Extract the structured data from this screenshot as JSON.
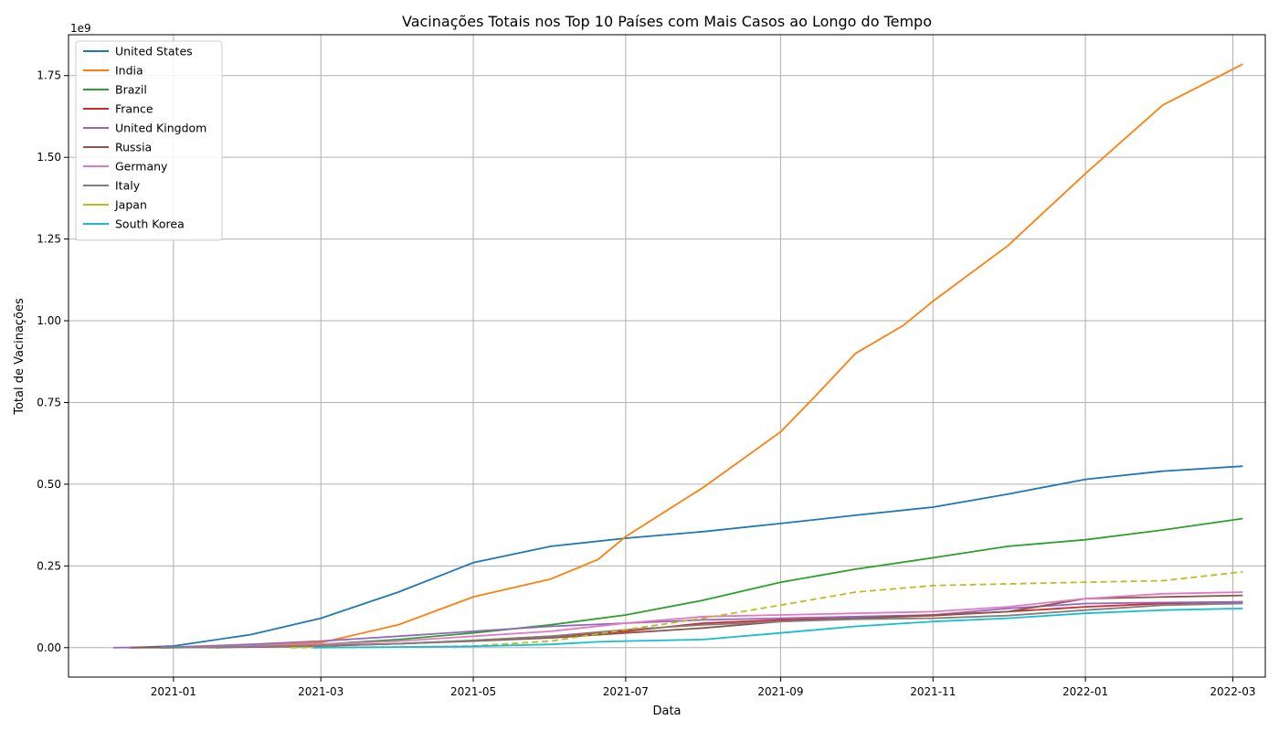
{
  "chart_data": {
    "type": "line",
    "title": "Vacinações Totais nos Top 10 Países com Mais Casos ao Longo do Tempo",
    "xlabel": "Data",
    "ylabel": "Total de Vacinações",
    "y_scale_label": "1e9",
    "y_ticks": [
      "0.00",
      "0.25",
      "0.50",
      "0.75",
      "1.00",
      "1.25",
      "1.50",
      "1.75"
    ],
    "x_ticks": [
      "2021-01",
      "2021-03",
      "2021-05",
      "2021-07",
      "2021-09",
      "2021-11",
      "2022-01",
      "2022-03"
    ],
    "xlim": [
      "2020-11-20",
      "2022-03-14"
    ],
    "ylim": [
      -0.09,
      1.875
    ],
    "grid": true,
    "legend_position": "upper-left",
    "series": [
      {
        "name": "United States",
        "color": "#1f77b4",
        "dashed": false,
        "points": [
          [
            "2020-12-14",
            0
          ],
          [
            "2021-01-01",
            0.005
          ],
          [
            "2021-02-01",
            0.04
          ],
          [
            "2021-03-01",
            0.09
          ],
          [
            "2021-04-01",
            0.17
          ],
          [
            "2021-05-01",
            0.26
          ],
          [
            "2021-06-01",
            0.31
          ],
          [
            "2021-07-01",
            0.335
          ],
          [
            "2021-08-01",
            0.355
          ],
          [
            "2021-09-01",
            0.38
          ],
          [
            "2021-10-01",
            0.405
          ],
          [
            "2021-11-01",
            0.43
          ],
          [
            "2021-12-01",
            0.47
          ],
          [
            "2022-01-01",
            0.515
          ],
          [
            "2022-02-01",
            0.54
          ],
          [
            "2022-03-05",
            0.555
          ]
        ]
      },
      {
        "name": "India",
        "color": "#ff7f0e",
        "dashed": false,
        "points": [
          [
            "2021-01-16",
            0
          ],
          [
            "2021-02-01",
            0.005
          ],
          [
            "2021-03-01",
            0.015
          ],
          [
            "2021-04-01",
            0.07
          ],
          [
            "2021-05-01",
            0.155
          ],
          [
            "2021-06-01",
            0.21
          ],
          [
            "2021-06-20",
            0.27
          ],
          [
            "2021-07-01",
            0.34
          ],
          [
            "2021-08-01",
            0.49
          ],
          [
            "2021-09-01",
            0.66
          ],
          [
            "2021-09-15",
            0.77
          ],
          [
            "2021-10-01",
            0.9
          ],
          [
            "2021-10-20",
            0.985
          ],
          [
            "2021-11-01",
            1.06
          ],
          [
            "2021-12-01",
            1.23
          ],
          [
            "2022-01-01",
            1.45
          ],
          [
            "2022-02-01",
            1.66
          ],
          [
            "2022-03-05",
            1.785
          ]
        ]
      },
      {
        "name": "Brazil",
        "color": "#2ca02c",
        "dashed": false,
        "points": [
          [
            "2021-01-18",
            0
          ],
          [
            "2021-03-01",
            0.01
          ],
          [
            "2021-04-01",
            0.025
          ],
          [
            "2021-05-01",
            0.045
          ],
          [
            "2021-06-01",
            0.07
          ],
          [
            "2021-07-01",
            0.1
          ],
          [
            "2021-08-01",
            0.145
          ],
          [
            "2021-09-01",
            0.2
          ],
          [
            "2021-10-01",
            0.24
          ],
          [
            "2021-11-01",
            0.275
          ],
          [
            "2021-12-01",
            0.31
          ],
          [
            "2022-01-01",
            0.33
          ],
          [
            "2022-02-01",
            0.36
          ],
          [
            "2022-03-05",
            0.395
          ]
        ]
      },
      {
        "name": "France",
        "color": "#d62728",
        "dashed": false,
        "points": [
          [
            "2020-12-27",
            0
          ],
          [
            "2021-02-01",
            0.002
          ],
          [
            "2021-03-01",
            0.005
          ],
          [
            "2021-04-01",
            0.012
          ],
          [
            "2021-05-01",
            0.022
          ],
          [
            "2021-06-01",
            0.035
          ],
          [
            "2021-07-01",
            0.05
          ],
          [
            "2021-08-01",
            0.075
          ],
          [
            "2021-09-01",
            0.085
          ],
          [
            "2021-10-01",
            0.09
          ],
          [
            "2021-11-01",
            0.098
          ],
          [
            "2021-12-01",
            0.11
          ],
          [
            "2022-01-01",
            0.125
          ],
          [
            "2022-02-01",
            0.135
          ],
          [
            "2022-03-05",
            0.14
          ]
        ]
      },
      {
        "name": "United Kingdom",
        "color": "#9467bd",
        "dashed": false,
        "points": [
          [
            "2020-12-08",
            0
          ],
          [
            "2021-01-01",
            0.002
          ],
          [
            "2021-02-01",
            0.01
          ],
          [
            "2021-03-01",
            0.02
          ],
          [
            "2021-04-01",
            0.035
          ],
          [
            "2021-05-01",
            0.05
          ],
          [
            "2021-06-01",
            0.065
          ],
          [
            "2021-07-01",
            0.075
          ],
          [
            "2021-08-01",
            0.085
          ],
          [
            "2021-09-01",
            0.09
          ],
          [
            "2021-10-01",
            0.095
          ],
          [
            "2021-11-01",
            0.1
          ],
          [
            "2021-12-01",
            0.12
          ],
          [
            "2022-01-01",
            0.135
          ],
          [
            "2022-02-01",
            0.138
          ],
          [
            "2022-03-05",
            0.14
          ]
        ]
      },
      {
        "name": "Russia",
        "color": "#8c564b",
        "dashed": false,
        "points": [
          [
            "2020-12-15",
            0
          ],
          [
            "2021-02-01",
            0.002
          ],
          [
            "2021-03-01",
            0.006
          ],
          [
            "2021-04-01",
            0.012
          ],
          [
            "2021-05-01",
            0.02
          ],
          [
            "2021-06-01",
            0.03
          ],
          [
            "2021-07-01",
            0.045
          ],
          [
            "2021-08-01",
            0.06
          ],
          [
            "2021-09-01",
            0.08
          ],
          [
            "2021-10-01",
            0.09
          ],
          [
            "2021-11-01",
            0.1
          ],
          [
            "2021-12-01",
            0.11
          ],
          [
            "2022-01-01",
            0.15
          ],
          [
            "2022-02-01",
            0.155
          ],
          [
            "2022-03-05",
            0.16
          ]
        ]
      },
      {
        "name": "Germany",
        "color": "#e377c2",
        "dashed": false,
        "points": [
          [
            "2020-12-27",
            0
          ],
          [
            "2021-02-01",
            0.005
          ],
          [
            "2021-03-01",
            0.01
          ],
          [
            "2021-04-01",
            0.02
          ],
          [
            "2021-05-01",
            0.035
          ],
          [
            "2021-06-01",
            0.05
          ],
          [
            "2021-07-01",
            0.075
          ],
          [
            "2021-08-01",
            0.095
          ],
          [
            "2021-09-01",
            0.1
          ],
          [
            "2021-10-01",
            0.105
          ],
          [
            "2021-11-01",
            0.11
          ],
          [
            "2021-12-01",
            0.125
          ],
          [
            "2022-01-01",
            0.15
          ],
          [
            "2022-02-01",
            0.165
          ],
          [
            "2022-03-05",
            0.17
          ]
        ]
      },
      {
        "name": "Italy",
        "color": "#7f7f7f",
        "dashed": false,
        "points": [
          [
            "2020-12-27",
            0
          ],
          [
            "2021-02-01",
            0.003
          ],
          [
            "2021-03-01",
            0.007
          ],
          [
            "2021-04-01",
            0.012
          ],
          [
            "2021-05-01",
            0.022
          ],
          [
            "2021-06-01",
            0.035
          ],
          [
            "2021-07-01",
            0.055
          ],
          [
            "2021-08-01",
            0.07
          ],
          [
            "2021-09-01",
            0.08
          ],
          [
            "2021-10-01",
            0.087
          ],
          [
            "2021-11-01",
            0.09
          ],
          [
            "2021-12-01",
            0.098
          ],
          [
            "2022-01-01",
            0.115
          ],
          [
            "2022-02-01",
            0.13
          ],
          [
            "2022-03-05",
            0.135
          ]
        ]
      },
      {
        "name": "Japan",
        "color": "#bcbd22",
        "dashed": true,
        "points": [
          [
            "2021-02-17",
            0
          ],
          [
            "2021-04-01",
            0.002
          ],
          [
            "2021-05-01",
            0.005
          ],
          [
            "2021-06-01",
            0.02
          ],
          [
            "2021-07-01",
            0.055
          ],
          [
            "2021-08-01",
            0.09
          ],
          [
            "2021-09-01",
            0.13
          ],
          [
            "2021-10-01",
            0.17
          ],
          [
            "2021-11-01",
            0.19
          ],
          [
            "2021-12-01",
            0.195
          ],
          [
            "2022-01-01",
            0.2
          ],
          [
            "2022-02-01",
            0.205
          ],
          [
            "2022-03-05",
            0.232
          ]
        ]
      },
      {
        "name": "South Korea",
        "color": "#17becf",
        "dashed": false,
        "points": [
          [
            "2021-02-26",
            0
          ],
          [
            "2021-04-01",
            0.002
          ],
          [
            "2021-05-01",
            0.004
          ],
          [
            "2021-06-01",
            0.01
          ],
          [
            "2021-06-20",
            0.018
          ],
          [
            "2021-07-01",
            0.02
          ],
          [
            "2021-08-01",
            0.025
          ],
          [
            "2021-09-01",
            0.045
          ],
          [
            "2021-10-01",
            0.065
          ],
          [
            "2021-11-01",
            0.08
          ],
          [
            "2021-12-01",
            0.09
          ],
          [
            "2022-01-01",
            0.105
          ],
          [
            "2022-02-01",
            0.115
          ],
          [
            "2022-03-05",
            0.12
          ]
        ]
      }
    ]
  }
}
